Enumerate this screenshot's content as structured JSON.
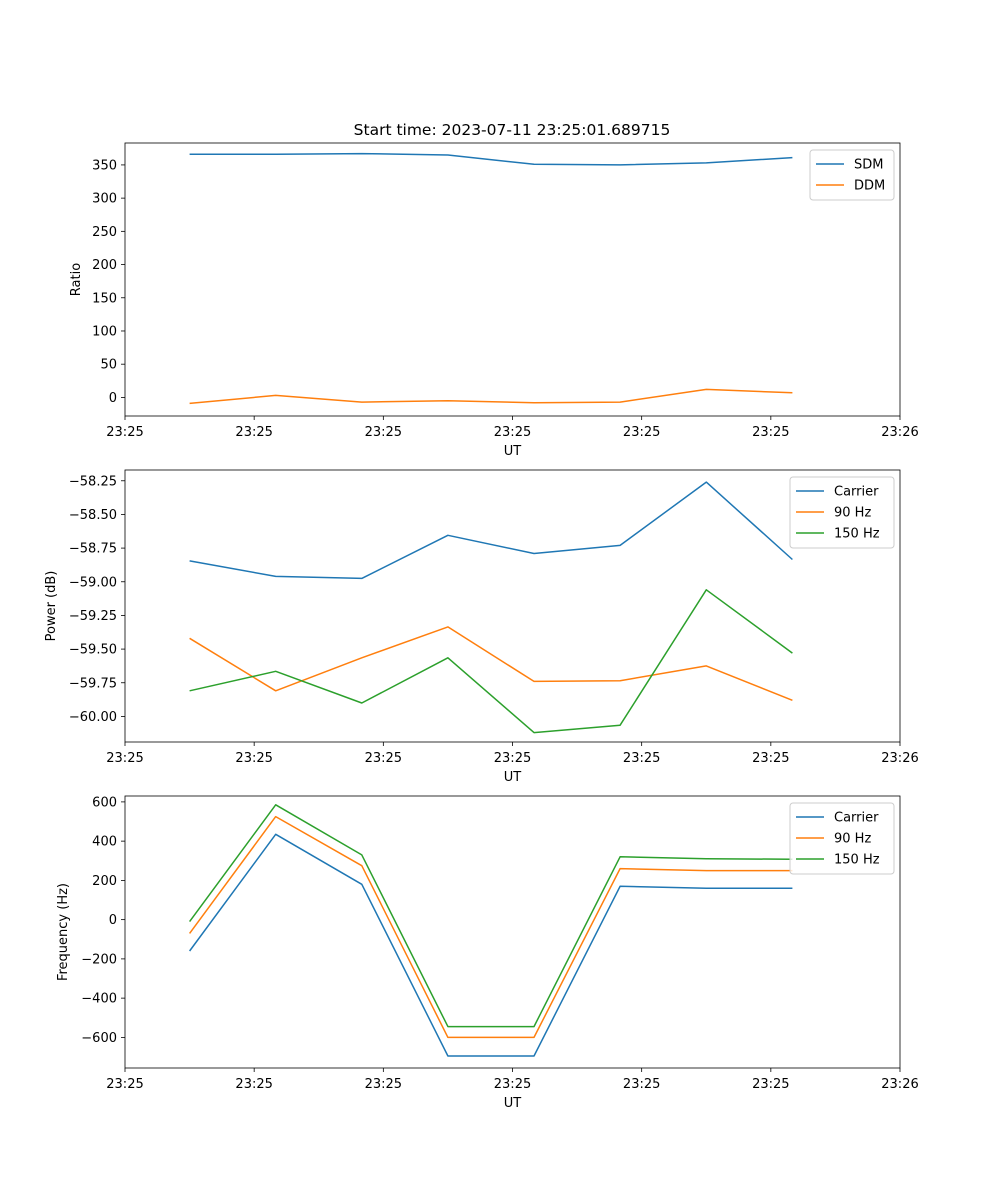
{
  "figure_title": "Start time: 2023-07-11 23:25:01.689715",
  "colors": {
    "c0": "#1f77b4",
    "c1": "#ff7f0e",
    "c2": "#2ca02c"
  },
  "chart_data": [
    {
      "type": "line",
      "title": "Start time: 2023-07-11 23:25:01.689715",
      "xlabel": "UT",
      "ylabel": "Ratio",
      "x": [
        1,
        2,
        3,
        4,
        5,
        6,
        7,
        8
      ],
      "xlim": [
        0.25,
        9.25
      ],
      "xticks": [
        0.25,
        1.75,
        3.25,
        4.75,
        6.25,
        7.75,
        9.25
      ],
      "xtick_labels": [
        "23:25",
        "23:25",
        "23:25",
        "23:25",
        "23:25",
        "23:25",
        "23:26"
      ],
      "ylim": [
        -28,
        383
      ],
      "yticks": [
        0,
        50,
        100,
        150,
        200,
        250,
        300,
        350
      ],
      "ytick_labels": [
        "0",
        "50",
        "100",
        "150",
        "200",
        "250",
        "300",
        "350"
      ],
      "legend_position": "top-right",
      "series": [
        {
          "name": "SDM",
          "color": "#1f77b4",
          "values": [
            366,
            366,
            367,
            365,
            351,
            350,
            353,
            361
          ]
        },
        {
          "name": "DDM",
          "color": "#ff7f0e",
          "values": [
            -9,
            3,
            -7,
            -5,
            -8,
            -7,
            12,
            7
          ]
        }
      ]
    },
    {
      "type": "line",
      "xlabel": "UT",
      "ylabel": "Power (dB)",
      "x": [
        1,
        2,
        3,
        4,
        5,
        6,
        7,
        8
      ],
      "xlim": [
        0.25,
        9.25
      ],
      "xticks": [
        0.25,
        1.75,
        3.25,
        4.75,
        6.25,
        7.75,
        9.25
      ],
      "xtick_labels": [
        "23:25",
        "23:25",
        "23:25",
        "23:25",
        "23:25",
        "23:25",
        "23:26"
      ],
      "ylim": [
        -60.19,
        -58.17
      ],
      "yticks": [
        -60.0,
        -59.75,
        -59.5,
        -59.25,
        -59.0,
        -58.75,
        -58.5,
        -58.25
      ],
      "ytick_labels": [
        "−60.00",
        "−59.75",
        "−59.50",
        "−59.25",
        "−59.00",
        "−58.75",
        "−58.50",
        "−58.25"
      ],
      "legend_position": "top-right",
      "series": [
        {
          "name": "Carrier",
          "color": "#1f77b4",
          "values": [
            -58.845,
            -58.96,
            -58.975,
            -58.655,
            -58.79,
            -58.73,
            -58.26,
            -58.835
          ]
        },
        {
          "name": "90 Hz",
          "color": "#ff7f0e",
          "values": [
            -59.42,
            -59.81,
            -59.565,
            -59.335,
            -59.74,
            -59.735,
            -59.625,
            -59.88
          ]
        },
        {
          "name": "150 Hz",
          "color": "#2ca02c",
          "values": [
            -59.81,
            -59.665,
            -59.9,
            -59.565,
            -60.12,
            -60.065,
            -59.06,
            -59.53
          ]
        }
      ]
    },
    {
      "type": "line",
      "xlabel": "UT",
      "ylabel": "Frequency (Hz)",
      "x": [
        1,
        2,
        3,
        4,
        5,
        6,
        7,
        8
      ],
      "xlim": [
        0.25,
        9.25
      ],
      "xticks": [
        0.25,
        1.75,
        3.25,
        4.75,
        6.25,
        7.75,
        9.25
      ],
      "xtick_labels": [
        "23:25",
        "23:25",
        "23:25",
        "23:25",
        "23:25",
        "23:25",
        "23:26"
      ],
      "ylim": [
        -756,
        630
      ],
      "yticks": [
        -600,
        -400,
        -200,
        0,
        200,
        400,
        600
      ],
      "ytick_labels": [
        "−600",
        "−400",
        "−200",
        "0",
        "200",
        "400",
        "600"
      ],
      "legend_position": "top-right",
      "series": [
        {
          "name": "Carrier",
          "color": "#1f77b4",
          "values": [
            -160,
            435,
            180,
            -695,
            -695,
            170,
            160,
            160
          ]
        },
        {
          "name": "90 Hz",
          "color": "#ff7f0e",
          "values": [
            -70,
            525,
            275,
            -600,
            -600,
            260,
            250,
            250
          ]
        },
        {
          "name": "150 Hz",
          "color": "#2ca02c",
          "values": [
            -10,
            585,
            330,
            -545,
            -545,
            320,
            310,
            308
          ]
        }
      ]
    }
  ]
}
